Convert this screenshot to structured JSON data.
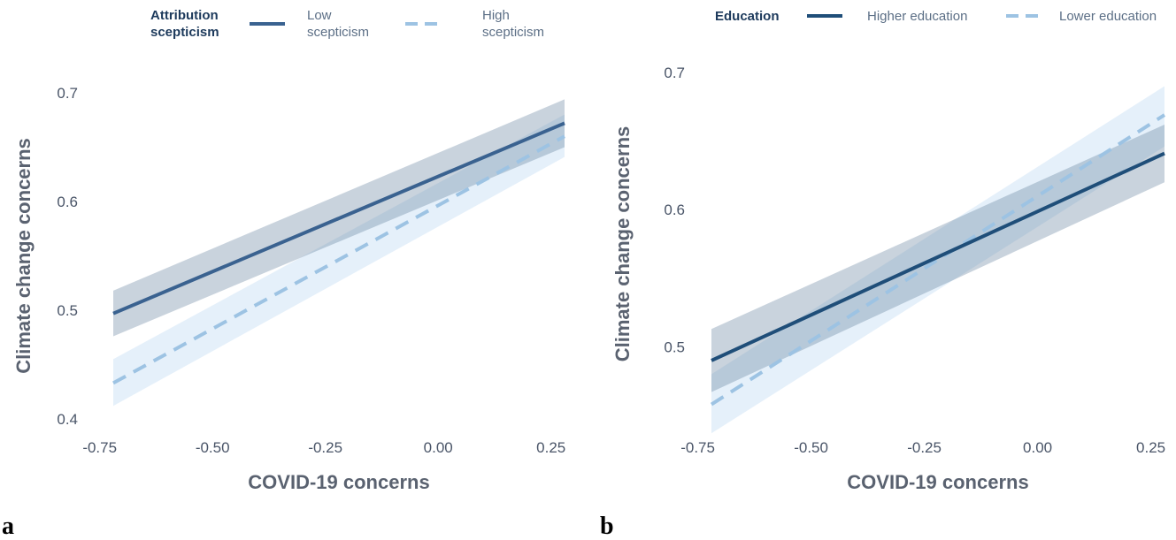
{
  "chart_data": [
    {
      "type": "line",
      "panel_label": "a",
      "xlabel": "COVID-19 concerns",
      "ylabel": "Climate change concerns",
      "xlim": [
        -0.72,
        0.28
      ],
      "ylim": [
        0.4,
        0.7
      ],
      "xticks": [
        -0.75,
        -0.5,
        -0.25,
        0.0,
        0.25
      ],
      "xtick_labels": [
        "-0.75",
        "-0.50",
        "-0.25",
        "0.00",
        "0.25"
      ],
      "yticks": [
        0.4,
        0.5,
        0.6,
        0.7
      ],
      "ytick_labels": [
        "0.4",
        "0.5",
        "0.6",
        "0.7"
      ],
      "grid": false,
      "legend": {
        "position": "top",
        "title_lines": [
          "Attribution",
          "scepticism"
        ],
        "entries": [
          {
            "label_lines": [
              "Low",
              "scepticism"
            ],
            "style": "solid",
            "color": "#3a6290"
          },
          {
            "label_lines": [
              "High",
              "scepticism"
            ],
            "style": "dashed",
            "color": "#9dc3e3"
          }
        ]
      },
      "series": [
        {
          "name": "Low scepticism",
          "style": "solid",
          "color": "#3a6290",
          "band_color": "#5b7899",
          "band_opacity": 0.33,
          "x": [
            -0.72,
            0.28
          ],
          "y": [
            0.497,
            0.672
          ],
          "ci_lower": [
            0.476,
            0.65
          ],
          "ci_upper": [
            0.518,
            0.694
          ]
        },
        {
          "name": "High scepticism",
          "style": "dashed",
          "color": "#9dc3e3",
          "band_color": "#d3e6f6",
          "band_opacity": 0.6,
          "x": [
            -0.72,
            0.28
          ],
          "y": [
            0.433,
            0.66
          ],
          "ci_lower": [
            0.412,
            0.641
          ],
          "ci_upper": [
            0.455,
            0.68
          ]
        }
      ]
    },
    {
      "type": "line",
      "panel_label": "b",
      "xlabel": "COVID-19 concerns",
      "ylabel": "Climate change concerns",
      "xlim": [
        -0.72,
        0.28
      ],
      "ylim": [
        0.45,
        0.7
      ],
      "xticks": [
        -0.75,
        -0.5,
        -0.25,
        0.0,
        0.25
      ],
      "xtick_labels": [
        "-0.75",
        "-0.50",
        "-0.25",
        "0.00",
        "0.25"
      ],
      "yticks": [
        0.5,
        0.6,
        0.7
      ],
      "ytick_labels": [
        "0.5",
        "0.6",
        "0.7"
      ],
      "grid": false,
      "legend": {
        "position": "top",
        "title_lines": [
          "Education"
        ],
        "entries": [
          {
            "label_lines": [
              "Higher education"
            ],
            "style": "solid",
            "color": "#1f4e79"
          },
          {
            "label_lines": [
              "Lower education"
            ],
            "style": "dashed",
            "color": "#9dc3e3"
          }
        ]
      },
      "series": [
        {
          "name": "Higher education",
          "style": "solid",
          "color": "#1f4e79",
          "band_color": "#5b7899",
          "band_opacity": 0.33,
          "x": [
            -0.72,
            0.28
          ],
          "y": [
            0.49,
            0.641
          ],
          "ci_lower": [
            0.467,
            0.62
          ],
          "ci_upper": [
            0.513,
            0.662
          ]
        },
        {
          "name": "Lower education",
          "style": "dashed",
          "color": "#9dc3e3",
          "band_color": "#d3e6f6",
          "band_opacity": 0.6,
          "x": [
            -0.72,
            0.28
          ],
          "y": [
            0.458,
            0.669
          ],
          "ci_lower": [
            0.437,
            0.646
          ],
          "ci_upper": [
            0.48,
            0.69
          ]
        }
      ]
    }
  ]
}
